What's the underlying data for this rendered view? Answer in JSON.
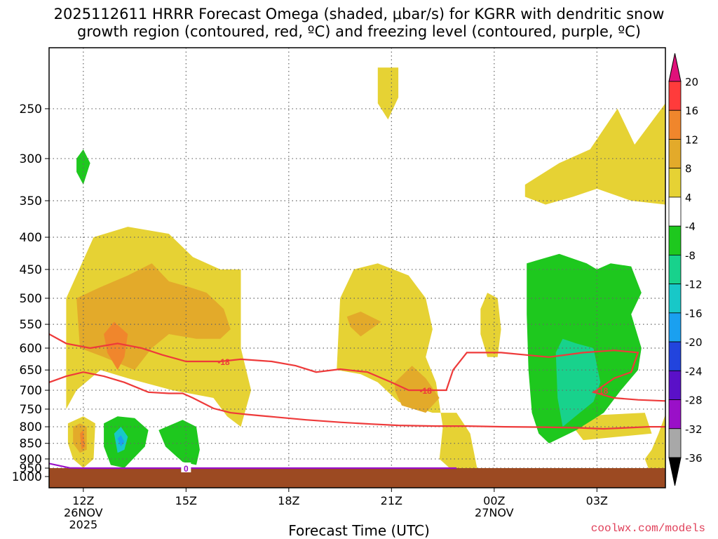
{
  "title_line1": "2025112611 HRRR Forecast Omega (shaded, μbar/s) for KGRR with dendritic snow",
  "title_line2": "growth region (contoured, red, ºC) and freezing level (contoured, purple, ºC)",
  "credit": "coolwx.com/models",
  "colors": {
    "ground": "#9c4a22",
    "dgz_contour": "#ee3a3a",
    "freezing_contour": "#9a10c8",
    "cb_top_arrow": "#e0107a",
    "cb_bottom_arrow": "#000000"
  },
  "chart_data": {
    "type": "heatmap",
    "xlabel": "Forecast Time (UTC)",
    "ylabel": "",
    "x_ticks": [
      {
        "hour": 12,
        "label": "12Z",
        "sub1": "26NOV",
        "sub2": "2025"
      },
      {
        "hour": 15,
        "label": "15Z",
        "sub1": "",
        "sub2": ""
      },
      {
        "hour": 18,
        "label": "18Z",
        "sub1": "",
        "sub2": ""
      },
      {
        "hour": 21,
        "label": "21Z",
        "sub1": "",
        "sub2": ""
      },
      {
        "hour": 24,
        "label": "00Z",
        "sub1": "27NOV",
        "sub2": ""
      },
      {
        "hour": 27,
        "label": "03Z",
        "sub1": "",
        "sub2": ""
      }
    ],
    "x_range_hours": [
      11,
      29
    ],
    "y_levels_hpa": [
      250,
      300,
      350,
      400,
      450,
      500,
      550,
      600,
      650,
      700,
      750,
      800,
      850,
      900,
      950,
      1000
    ],
    "y_range_hpa": [
      200,
      1000
    ],
    "y_scale": "log",
    "grid": true,
    "colorbar": {
      "labels": [
        "20",
        "16",
        "12",
        "8",
        "4",
        "-4",
        "-8",
        "-12",
        "-16",
        "-20",
        "-24",
        "-28",
        "-32",
        "-36"
      ],
      "bins": [
        {
          "color": "#ff3b3b"
        },
        {
          "color": "#f0862c"
        },
        {
          "color": "#e3aa2a"
        },
        {
          "color": "#e6d234"
        },
        {
          "color": "#ffffff"
        },
        {
          "color": "#1ec81e"
        },
        {
          "color": "#18d28c"
        },
        {
          "color": "#18c8c8"
        },
        {
          "color": "#1aa0f0"
        },
        {
          "color": "#2244dd"
        },
        {
          "color": "#5a10c8"
        },
        {
          "color": "#9a10c8"
        },
        {
          "color": "#a8a8a8"
        }
      ]
    },
    "omega_regions": [
      {
        "omega": "4 to 8",
        "color": "#e6d234",
        "pts": [
          [
            11.5,
            850
          ],
          [
            11.5,
            500
          ],
          [
            12.3,
            400
          ],
          [
            13.3,
            385
          ],
          [
            14.5,
            395
          ],
          [
            15.2,
            430
          ],
          [
            16.0,
            450
          ],
          [
            16.6,
            450
          ],
          [
            16.6,
            600
          ],
          [
            16.9,
            700
          ],
          [
            16.6,
            800
          ],
          [
            16.2,
            770
          ],
          [
            15.8,
            720
          ],
          [
            14.6,
            700
          ],
          [
            13.3,
            670
          ],
          [
            12.5,
            650
          ],
          [
            11.8,
            700
          ],
          [
            11.5,
            750
          ]
        ]
      },
      {
        "omega": "4 to 8",
        "color": "#e6d234",
        "pts": [
          [
            11.55,
            790
          ],
          [
            12.0,
            770
          ],
          [
            12.35,
            790
          ],
          [
            12.3,
            900
          ],
          [
            12.0,
            930
          ],
          [
            11.7,
            900
          ],
          [
            11.55,
            850
          ]
        ]
      },
      {
        "omega": "4 to 8",
        "color": "#e6d234",
        "pts": [
          [
            19.4,
            650
          ],
          [
            19.5,
            500
          ],
          [
            19.9,
            450
          ],
          [
            20.6,
            440
          ],
          [
            21.5,
            460
          ],
          [
            22.0,
            500
          ],
          [
            22.2,
            560
          ],
          [
            22.0,
            620
          ],
          [
            22.3,
            680
          ],
          [
            22.5,
            800
          ],
          [
            22.4,
            900
          ],
          [
            22.7,
            950
          ],
          [
            23.4,
            960
          ],
          [
            23.5,
            940
          ],
          [
            23.3,
            820
          ],
          [
            22.9,
            760
          ],
          [
            22.2,
            760
          ],
          [
            21.2,
            730
          ],
          [
            20.6,
            680
          ],
          [
            20.1,
            660
          ]
        ]
      },
      {
        "omega": "4 to 8",
        "color": "#e6d234",
        "pts": [
          [
            20.6,
            215
          ],
          [
            21.2,
            215
          ],
          [
            21.2,
            240
          ],
          [
            20.9,
            260
          ],
          [
            20.6,
            245
          ]
        ]
      },
      {
        "omega": "4 to 8",
        "color": "#e6d234",
        "pts": [
          [
            23.6,
            520
          ],
          [
            23.8,
            490
          ],
          [
            24.1,
            500
          ],
          [
            24.2,
            560
          ],
          [
            24.1,
            620
          ],
          [
            23.8,
            620
          ],
          [
            23.6,
            570
          ]
        ]
      },
      {
        "omega": "4 to 8",
        "color": "#e6d234",
        "pts": [
          [
            24.9,
            330
          ],
          [
            25.9,
            305
          ],
          [
            26.8,
            290
          ],
          [
            27.6,
            250
          ],
          [
            28.1,
            285
          ],
          [
            29.0,
            245
          ],
          [
            29.0,
            355
          ],
          [
            28.0,
            350
          ],
          [
            27.0,
            335
          ],
          [
            26.3,
            345
          ],
          [
            25.5,
            355
          ],
          [
            24.9,
            345
          ]
        ]
      },
      {
        "omega": "4 to 8",
        "color": "#e6d234",
        "pts": [
          [
            28.6,
            870
          ],
          [
            28.8,
            820
          ],
          [
            29.0,
            765
          ],
          [
            29.0,
            950
          ],
          [
            28.5,
            950
          ],
          [
            28.4,
            900
          ]
        ]
      },
      {
        "omega": "4 to 8",
        "color": "#e6d234",
        "pts": [
          [
            26.3,
            770
          ],
          [
            28.4,
            760
          ],
          [
            28.6,
            820
          ],
          [
            27.6,
            830
          ],
          [
            26.6,
            840
          ],
          [
            26.3,
            800
          ]
        ]
      },
      {
        "omega": "8 to 12",
        "color": "#e3aa2a",
        "pts": [
          [
            11.8,
            500
          ],
          [
            12.5,
            480
          ],
          [
            13.3,
            460
          ],
          [
            14.0,
            440
          ],
          [
            14.5,
            470
          ],
          [
            15.1,
            480
          ],
          [
            15.6,
            490
          ],
          [
            16.1,
            520
          ],
          [
            16.3,
            560
          ],
          [
            16.0,
            580
          ],
          [
            15.3,
            580
          ],
          [
            14.5,
            570
          ],
          [
            14.0,
            600
          ],
          [
            13.5,
            650
          ],
          [
            12.6,
            620
          ],
          [
            11.9,
            600
          ]
        ]
      },
      {
        "omega": "8 to 12",
        "color": "#e3aa2a",
        "pts": [
          [
            11.7,
            800
          ],
          [
            11.9,
            790
          ],
          [
            12.1,
            800
          ],
          [
            12.1,
            870
          ],
          [
            11.9,
            880
          ],
          [
            11.7,
            850
          ]
        ]
      },
      {
        "omega": "8 to 12",
        "color": "#e3aa2a",
        "pts": [
          [
            19.7,
            535
          ],
          [
            20.1,
            525
          ],
          [
            20.7,
            545
          ],
          [
            20.1,
            575
          ],
          [
            19.8,
            555
          ]
        ]
      },
      {
        "omega": "8 to 12",
        "color": "#e3aa2a",
        "pts": [
          [
            21.1,
            680
          ],
          [
            21.6,
            640
          ],
          [
            22.0,
            670
          ],
          [
            22.4,
            720
          ],
          [
            22.0,
            760
          ],
          [
            21.3,
            740
          ],
          [
            21.1,
            700
          ]
        ]
      },
      {
        "omega": "12 to 16",
        "color": "#f0862c",
        "pts": [
          [
            12.6,
            570
          ],
          [
            12.9,
            545
          ],
          [
            13.3,
            570
          ],
          [
            13.2,
            620
          ],
          [
            13.0,
            650
          ],
          [
            12.7,
            610
          ]
        ]
      },
      {
        "omega": "12 to 16",
        "color": "#f0862c",
        "pts": [
          [
            11.9,
            820
          ],
          [
            12.0,
            810
          ],
          [
            12.05,
            860
          ],
          [
            11.95,
            870
          ]
        ]
      },
      {
        "omega": "-4 to -8",
        "color": "#1ec81e",
        "pts": [
          [
            11.8,
            300
          ],
          [
            12.0,
            290
          ],
          [
            12.2,
            305
          ],
          [
            12.0,
            330
          ],
          [
            11.8,
            315
          ]
        ]
      },
      {
        "omega": "-4 to -8",
        "color": "#1ec81e",
        "pts": [
          [
            12.6,
            790
          ],
          [
            13.0,
            770
          ],
          [
            13.5,
            775
          ],
          [
            13.9,
            810
          ],
          [
            13.8,
            860
          ],
          [
            13.2,
            930
          ],
          [
            12.8,
            920
          ],
          [
            12.6,
            860
          ]
        ]
      },
      {
        "omega": "-4 to -8",
        "color": "#1ec81e",
        "pts": [
          [
            14.2,
            810
          ],
          [
            14.9,
            780
          ],
          [
            15.3,
            800
          ],
          [
            15.4,
            870
          ],
          [
            15.3,
            920
          ],
          [
            14.9,
            910
          ],
          [
            14.4,
            860
          ]
        ]
      },
      {
        "omega": "-4 to -8",
        "color": "#1ec81e",
        "pts": [
          [
            24.95,
            440
          ],
          [
            25.9,
            425
          ],
          [
            26.7,
            440
          ],
          [
            27.0,
            450
          ],
          [
            27.4,
            440
          ],
          [
            28.0,
            445
          ],
          [
            28.3,
            490
          ],
          [
            28.0,
            530
          ],
          [
            28.3,
            600
          ],
          [
            28.2,
            650
          ],
          [
            27.7,
            700
          ],
          [
            27.2,
            760
          ],
          [
            26.4,
            810
          ],
          [
            25.6,
            850
          ],
          [
            25.3,
            820
          ],
          [
            25.1,
            760
          ],
          [
            25.0,
            650
          ],
          [
            24.95,
            530
          ]
        ]
      },
      {
        "omega": "-8 to -12",
        "color": "#18d28c",
        "pts": [
          [
            25.8,
            610
          ],
          [
            26.0,
            580
          ],
          [
            26.4,
            590
          ],
          [
            26.9,
            600
          ],
          [
            27.1,
            680
          ],
          [
            26.9,
            730
          ],
          [
            26.5,
            760
          ],
          [
            26.0,
            800
          ],
          [
            25.85,
            720
          ]
        ]
      },
      {
        "omega": "-12 to -16",
        "color": "#18c8c8",
        "pts": [
          [
            12.9,
            820
          ],
          [
            13.1,
            800
          ],
          [
            13.3,
            830
          ],
          [
            13.2,
            870
          ],
          [
            13.0,
            880
          ]
        ]
      },
      {
        "omega": "-16 to -20",
        "color": "#1aa0f0",
        "pts": [
          [
            13.0,
            835
          ],
          [
            13.1,
            825
          ],
          [
            13.2,
            845
          ],
          [
            13.1,
            860
          ]
        ]
      }
    ],
    "dgz_contours": [
      {
        "label": "-18",
        "pts": [
          [
            11.0,
            570
          ],
          [
            11.5,
            590
          ],
          [
            12.2,
            600
          ],
          [
            13.0,
            590
          ],
          [
            13.7,
            600
          ],
          [
            14.3,
            615
          ],
          [
            15.0,
            630
          ],
          [
            15.6,
            630
          ],
          [
            16.0,
            630
          ],
          [
            16.6,
            625
          ],
          [
            17.5,
            630
          ],
          [
            18.2,
            640
          ],
          [
            18.8,
            655
          ],
          [
            19.5,
            648
          ],
          [
            20.3,
            655
          ],
          [
            21.0,
            680
          ],
          [
            21.5,
            700
          ],
          [
            22.2,
            700
          ],
          [
            22.6,
            700
          ],
          [
            22.8,
            650
          ],
          [
            23.2,
            610
          ],
          [
            24.2,
            610
          ],
          [
            25.6,
            620
          ],
          [
            26.6,
            610
          ],
          [
            27.5,
            605
          ],
          [
            28.2,
            610
          ],
          [
            28.0,
            655
          ],
          [
            27.5,
            670
          ],
          [
            27.0,
            700
          ],
          [
            26.9,
            705
          ],
          [
            27.5,
            720
          ],
          [
            28.2,
            725
          ],
          [
            29.0,
            728
          ]
        ]
      },
      {
        "label": "",
        "pts": [
          [
            11.0,
            680
          ],
          [
            11.5,
            665
          ],
          [
            12.0,
            655
          ],
          [
            12.6,
            665
          ],
          [
            13.2,
            680
          ],
          [
            13.9,
            705
          ],
          [
            14.5,
            708
          ],
          [
            14.9,
            708
          ],
          [
            15.2,
            720
          ],
          [
            15.8,
            748
          ],
          [
            16.3,
            760
          ],
          [
            16.8,
            765
          ],
          [
            17.6,
            772
          ],
          [
            18.5,
            780
          ],
          [
            19.5,
            787
          ],
          [
            20.4,
            792
          ],
          [
            21.2,
            796
          ],
          [
            22.3,
            798
          ],
          [
            23.2,
            798
          ],
          [
            24.3,
            800
          ],
          [
            25.4,
            801
          ],
          [
            26.4,
            803
          ],
          [
            27.2,
            806
          ],
          [
            27.9,
            803
          ],
          [
            28.5,
            800
          ],
          [
            29.0,
            800
          ]
        ]
      }
    ],
    "dgz_label_hours": [
      16.1,
      22.0,
      27.15
    ],
    "freezing_contour": {
      "label": "0",
      "pts": [
        [
          11.0,
          915
        ],
        [
          11.6,
          930
        ],
        [
          12.0,
          940
        ],
        [
          12.8,
          936
        ],
        [
          13.5,
          938
        ],
        [
          14.2,
          940
        ],
        [
          14.6,
          946
        ],
        [
          15.0,
          945
        ],
        [
          15.5,
          942
        ],
        [
          16.0,
          945
        ],
        [
          16.5,
          950
        ],
        [
          17.2,
          955
        ],
        [
          18.0,
          958
        ],
        [
          19.0,
          962
        ],
        [
          20.0,
          966
        ],
        [
          21.0,
          970
        ],
        [
          22.0,
          972
        ],
        [
          22.9,
          976
        ]
      ]
    },
    "freezing_label_hour": 15.0
  }
}
